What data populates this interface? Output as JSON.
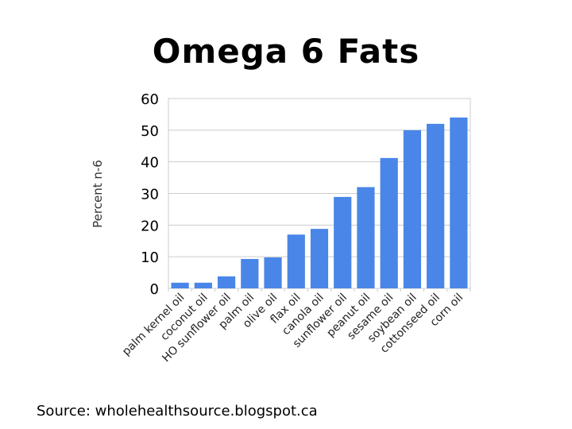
{
  "slide": {
    "title": "Omega 6 Fats",
    "source": "Source: wholehealthsource.blogspot.ca"
  },
  "chart_data": {
    "type": "bar",
    "title": "Omega 6 Fats",
    "xlabel": "",
    "ylabel": "Percent n-6",
    "ylim": [
      0,
      60
    ],
    "yticks": [
      0,
      10,
      20,
      30,
      40,
      50,
      60
    ],
    "grid": true,
    "legend": null,
    "bar_color": "#4a86e8",
    "categories": [
      "palm kernel oil",
      "coconut oil",
      "HO sunflower oil",
      "palm oil",
      "olive oil",
      "flax oil",
      "canola oil",
      "sunflower oil",
      "peanut oil",
      "sesame oil",
      "soybean oil",
      "cottonseed oil",
      "corn oil"
    ],
    "values": [
      1.8,
      1.8,
      3.8,
      9.3,
      9.8,
      17,
      18.8,
      28.9,
      32,
      41.2,
      50,
      52,
      54
    ]
  }
}
